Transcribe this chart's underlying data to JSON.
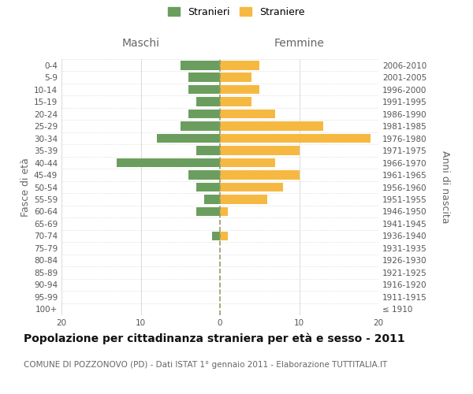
{
  "age_groups": [
    "100+",
    "95-99",
    "90-94",
    "85-89",
    "80-84",
    "75-79",
    "70-74",
    "65-69",
    "60-64",
    "55-59",
    "50-54",
    "45-49",
    "40-44",
    "35-39",
    "30-34",
    "25-29",
    "20-24",
    "15-19",
    "10-14",
    "5-9",
    "0-4"
  ],
  "birth_years": [
    "≤ 1910",
    "1911-1915",
    "1916-1920",
    "1921-1925",
    "1926-1930",
    "1931-1935",
    "1936-1940",
    "1941-1945",
    "1946-1950",
    "1951-1955",
    "1956-1960",
    "1961-1965",
    "1966-1970",
    "1971-1975",
    "1976-1980",
    "1981-1985",
    "1986-1990",
    "1991-1995",
    "1996-2000",
    "2001-2005",
    "2006-2010"
  ],
  "maschi": [
    0,
    0,
    0,
    0,
    0,
    0,
    1,
    0,
    3,
    2,
    3,
    4,
    13,
    3,
    8,
    5,
    4,
    3,
    4,
    4,
    5
  ],
  "femmine": [
    0,
    0,
    0,
    0,
    0,
    0,
    1,
    0,
    1,
    6,
    8,
    10,
    7,
    10,
    19,
    13,
    7,
    4,
    5,
    4,
    5
  ],
  "maschi_color": "#6b9e5e",
  "femmine_color": "#f5b942",
  "background_color": "#ffffff",
  "grid_color": "#cccccc",
  "title": "Popolazione per cittadinanza straniera per età e sesso - 2011",
  "subtitle": "COMUNE DI POZZONOVO (PD) - Dati ISTAT 1° gennaio 2011 - Elaborazione TUTTITALIA.IT",
  "header_left": "Maschi",
  "header_right": "Femmine",
  "ylabel_left": "Fasce di età",
  "ylabel_right": "Anni di nascita",
  "legend_maschi": "Stranieri",
  "legend_femmine": "Straniere",
  "xlim": 20,
  "dashed_line_color": "#999966",
  "title_fontsize": 10,
  "subtitle_fontsize": 7.5,
  "tick_fontsize": 7.5,
  "header_fontsize": 10,
  "ylabel_fontsize": 9,
  "legend_fontsize": 9
}
